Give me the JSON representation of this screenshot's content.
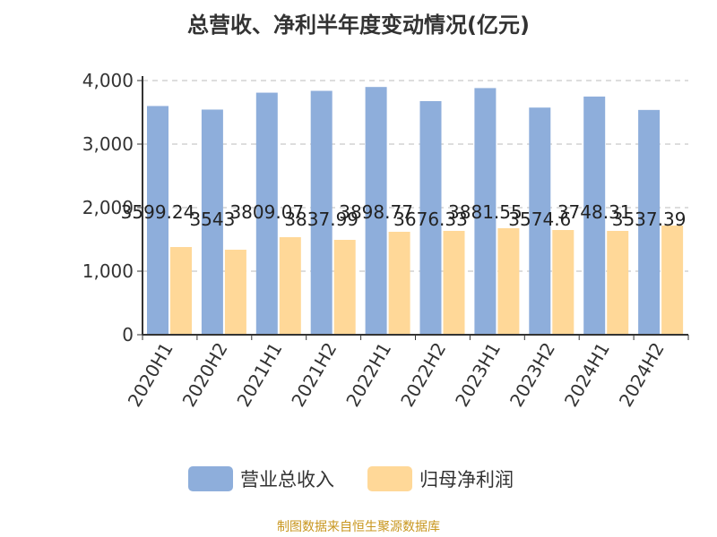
{
  "chart_data": {
    "type": "bar",
    "title": "总营收、净利半年度变动情况(亿元)",
    "categories": [
      "2020H1",
      "2020H2",
      "2021H1",
      "2021H2",
      "2022H1",
      "2022H2",
      "2023H1",
      "2023H2",
      "2024H1",
      "2024H2"
    ],
    "series": [
      {
        "name": "营业总收入",
        "color": "#8eaedb",
        "values": [
          3599.24,
          3543,
          3809.07,
          3837.99,
          3898.77,
          3676.33,
          3881.55,
          3574.6,
          3748.31,
          3537.39
        ],
        "labels": [
          "3599.24",
          "3543",
          "3809.07",
          "3837.99",
          "3898.77",
          "3676.33",
          "3881.55",
          "3574.6",
          "3748.31",
          "3537.39"
        ]
      },
      {
        "name": "归母净利润",
        "color": "#ffd898",
        "values": [
          1380,
          1338,
          1535,
          1493,
          1620,
          1634,
          1676,
          1648,
          1634,
          1718
        ]
      }
    ],
    "yticks": [
      "0",
      "1,000",
      "2,000",
      "3,000",
      "4,000"
    ],
    "ylim": [
      0,
      4000
    ],
    "grid": true,
    "legend": "bottom"
  },
  "source": "制图数据来自恒生聚源数据库"
}
